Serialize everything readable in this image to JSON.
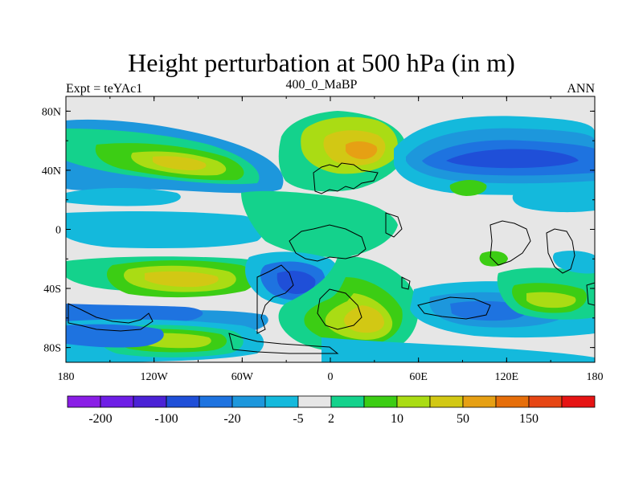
{
  "title": "Height perturbation at 500 hPa (in m)",
  "subtitle_left": "Expt = teYAc1",
  "subtitle_center": "400_0_MaBP",
  "subtitle_right": "ANN",
  "chart_data": {
    "type": "heatmap",
    "title": "Height perturbation at 500 hPa (in m)",
    "xlabel": "",
    "ylabel": "",
    "x_ticks": [
      "180",
      "120W",
      "60W",
      "0",
      "60E",
      "120E",
      "180"
    ],
    "y_ticks": [
      "80N",
      "40N",
      "0",
      "40S",
      "80S"
    ],
    "xlim": [
      -180,
      180
    ],
    "ylim": [
      -90,
      90
    ],
    "colorbar": {
      "labels": [
        "-200",
        "-100",
        "-20",
        "-5",
        "2",
        "10",
        "50",
        "150"
      ],
      "colors": [
        "#8a1ee6",
        "#6e1ee6",
        "#4b22d6",
        "#1f4fd8",
        "#1e73e0",
        "#1d97dc",
        "#14b9dc",
        "#e6e6e6",
        "#14d28c",
        "#3ccd14",
        "#aadc14",
        "#d2c814",
        "#e6a014",
        "#e66e0a",
        "#e64614",
        "#e61414"
      ]
    },
    "features": [
      {
        "sign": "positive",
        "lon": -90,
        "lat": 50,
        "level": "10-50"
      },
      {
        "sign": "positive",
        "lon": 20,
        "lat": 60,
        "level": "50-150"
      },
      {
        "sign": "negative",
        "lon": 120,
        "lat": 50,
        "level": "-100 to -20"
      },
      {
        "sign": "negative",
        "lon": -140,
        "lat": 35,
        "level": "-5 to -20"
      },
      {
        "sign": "positive",
        "lon": -90,
        "lat": -38,
        "level": "10-50"
      },
      {
        "sign": "negative",
        "lon": -10,
        "lat": -40,
        "level": "-100 to -20"
      },
      {
        "sign": "positive",
        "lon": 30,
        "lat": -65,
        "level": "10-50"
      },
      {
        "sign": "negative",
        "lon": 130,
        "lat": -68,
        "level": "-5 to -20"
      },
      {
        "sign": "positive",
        "lon": 150,
        "lat": -55,
        "level": "10-50"
      },
      {
        "sign": "positive",
        "lon": -110,
        "lat": -75,
        "level": "10-50"
      }
    ]
  }
}
